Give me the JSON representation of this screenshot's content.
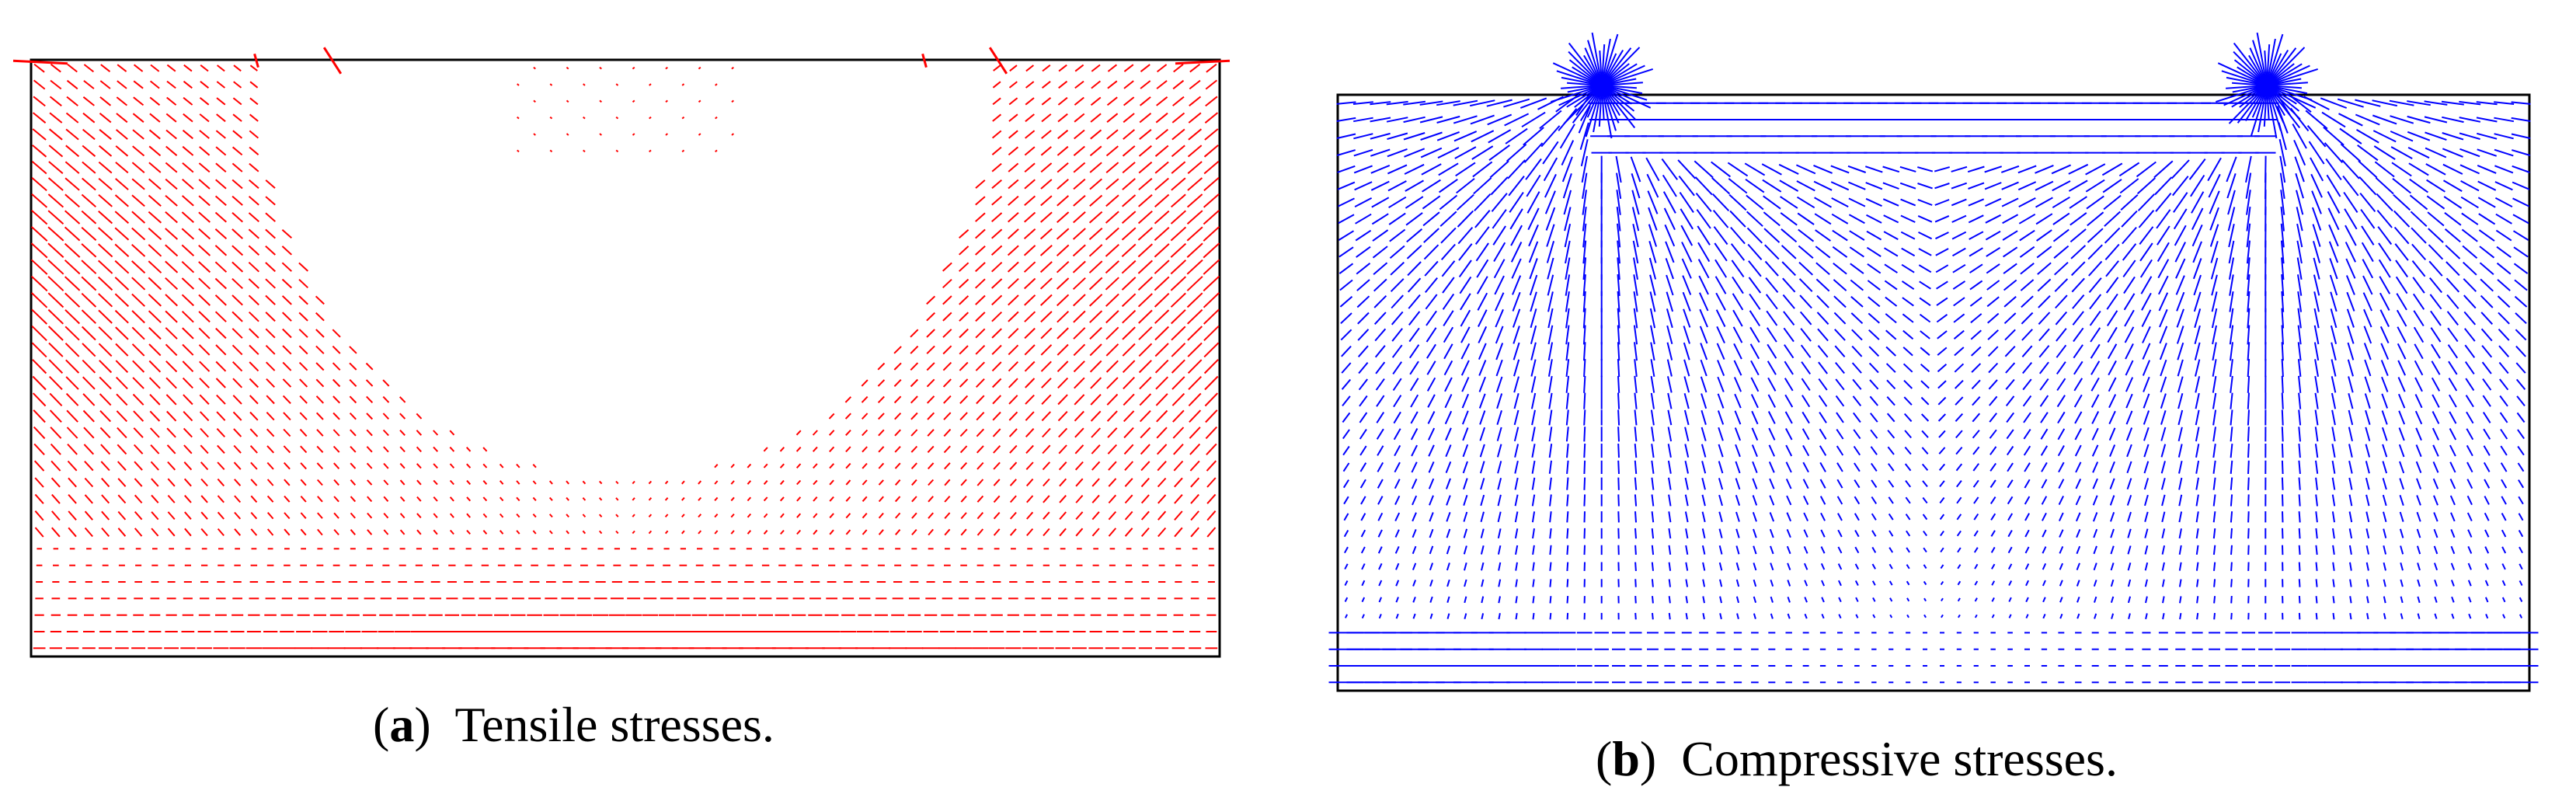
{
  "figure": {
    "panels": [
      {
        "id": "a",
        "letter": "a",
        "caption": "Tensile stresses.",
        "color": "#ff0000",
        "field": "tension"
      },
      {
        "id": "b",
        "letter": "b",
        "caption": "Compressive stresses.",
        "color": "#0000ff",
        "field": "compression"
      }
    ],
    "frame_color": "#000000"
  }
}
